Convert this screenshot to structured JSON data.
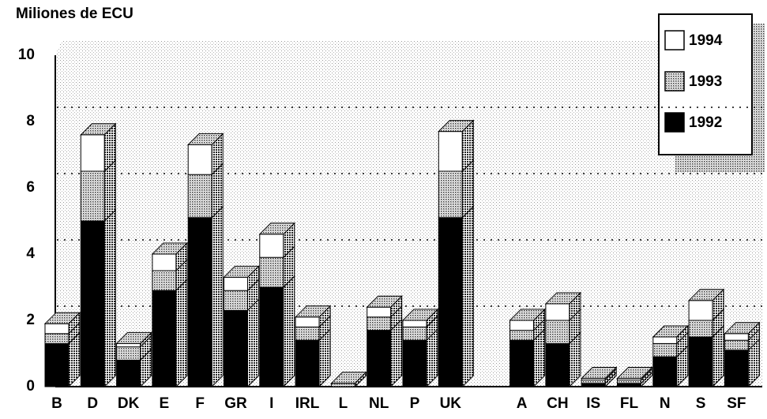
{
  "chart_data": {
    "type": "bar",
    "stacked": true,
    "y_label": "Miliones de ECU",
    "categories": [
      "B",
      "D",
      "DK",
      "E",
      "F",
      "GR",
      "I",
      "IRL",
      "L",
      "NL",
      "P",
      "UK",
      "A",
      "CH",
      "IS",
      "FL",
      "N",
      "S",
      "SF"
    ],
    "series": [
      {
        "name": "1992",
        "color": "#000000",
        "values": [
          1.3,
          5.0,
          0.8,
          2.9,
          5.1,
          2.3,
          3.0,
          1.4,
          0,
          1.7,
          1.4,
          5.1,
          1.4,
          1.3,
          0.1,
          0.1,
          0.9,
          1.5,
          1.1
        ]
      },
      {
        "name": "1993",
        "color": "#9a9a9a",
        "values": [
          0.3,
          1.5,
          0.4,
          0.6,
          1.3,
          0.6,
          0.9,
          0.4,
          0.1,
          0.4,
          0.4,
          1.4,
          0.3,
          0.7,
          0.1,
          0.1,
          0.4,
          0.5,
          0.3
        ]
      },
      {
        "name": "1994",
        "color": "#ffffff",
        "values": [
          0.3,
          1.1,
          0.1,
          0.5,
          0.9,
          0.4,
          0.7,
          0.3,
          0,
          0.3,
          0.2,
          1.2,
          0.3,
          0.5,
          0.05,
          0.05,
          0.2,
          0.6,
          0.2
        ]
      }
    ],
    "ylim": [
      0,
      10
    ],
    "yticks": [
      0,
      2,
      4,
      6,
      8,
      10
    ],
    "grid": true,
    "legend": "top-right"
  }
}
